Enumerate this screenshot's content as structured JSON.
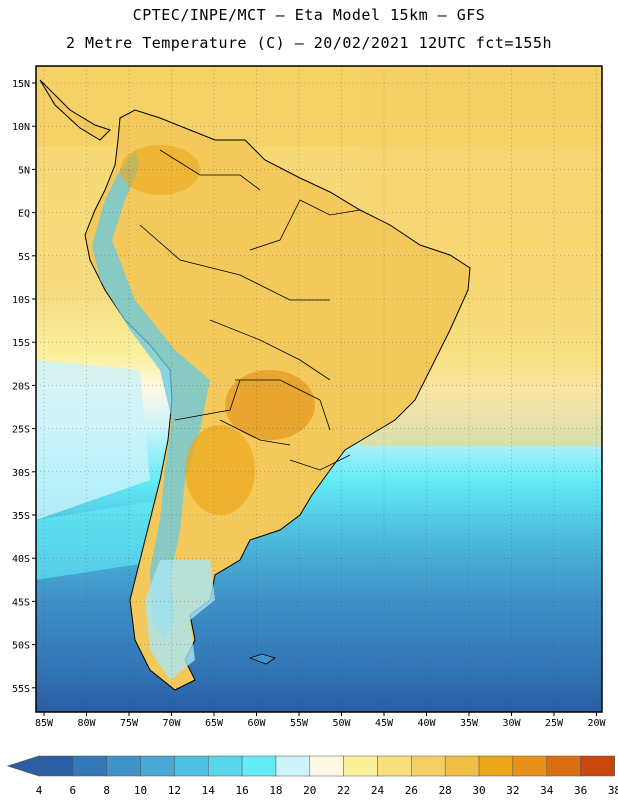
{
  "header": {
    "line1": "CPTEC/INPE/MCT –  Eta Model 15km – GFS",
    "line2": "2 Metre Temperature (C) – 20/02/2021 12UTC fct=155h"
  },
  "map": {
    "lat_ticks": [
      "15N",
      "10N",
      "5N",
      "EQ",
      "5S",
      "10S",
      "15S",
      "20S",
      "25S",
      "30S",
      "35S",
      "40S",
      "45S",
      "50S",
      "55S"
    ],
    "lon_ticks": [
      "85W",
      "80W",
      "75W",
      "70W",
      "65W",
      "60W",
      "55W",
      "50W",
      "45W",
      "40W",
      "35W",
      "30W",
      "25W",
      "20W"
    ],
    "region": "South America",
    "grid": "dotted"
  },
  "colorbar": {
    "labels": [
      "4",
      "6",
      "8",
      "10",
      "12",
      "14",
      "16",
      "18",
      "20",
      "22",
      "24",
      "26",
      "28",
      "30",
      "32",
      "34",
      "36",
      "38"
    ],
    "colors": [
      "#2a5fa5",
      "#3379b8",
      "#3f93c8",
      "#48a8d6",
      "#4ec0e0",
      "#5ad5ea",
      "#64ecf6",
      "#cdf3fb",
      "#fff8e5",
      "#fbf09a",
      "#f7df7e",
      "#f4cf66",
      "#f0bd45",
      "#eca81c",
      "#e8901a",
      "#dc6e12",
      "#c9470d"
    ],
    "low_arrow": "#2a5fa5",
    "high_arrow": "#c0390a"
  }
}
